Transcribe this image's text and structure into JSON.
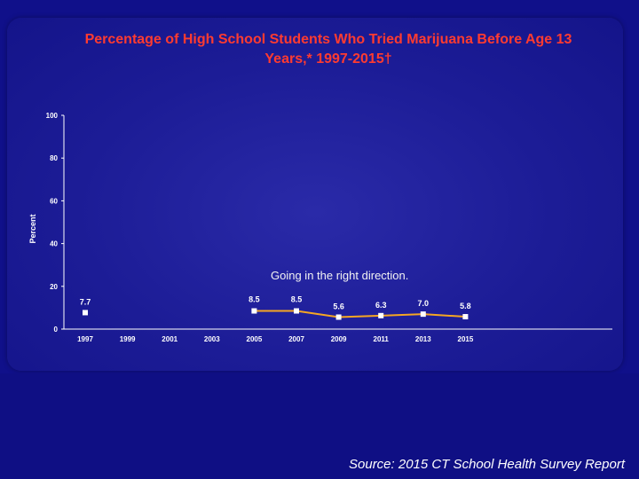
{
  "colors": {
    "background": "#10108a",
    "title": "#ff3b30",
    "line": "#f5a623",
    "marker": "#ffffff"
  },
  "annotation": "Going in the right direction.",
  "source": "Source: 2015 CT School Health Survey Report",
  "chart_data": {
    "type": "line",
    "title": "Percentage of High School Students Who Tried Marijuana Before Age 13 Years,* 1997-2015†",
    "title_lines": [
      "Percentage of High School Students Who Tried Marijuana Before Age 13",
      "Years,* 1997-2015†"
    ],
    "xlabel": "",
    "ylabel": "Percent",
    "ylim": [
      0,
      100
    ],
    "yticks": [
      "0",
      "20",
      "40",
      "60",
      "80",
      "100"
    ],
    "categories": [
      "1997",
      "1999",
      "2001",
      "2003",
      "2005",
      "2007",
      "2009",
      "2011",
      "2013",
      "2015"
    ],
    "values": [
      7.7,
      null,
      null,
      null,
      8.5,
      8.5,
      5.6,
      6.3,
      7.0,
      5.8
    ],
    "value_labels": [
      "7.7",
      "",
      "",
      "",
      "8.5",
      "8.5",
      "5.6",
      "6.3",
      "7.0",
      "5.8"
    ],
    "line_segments": [
      [
        4,
        9
      ]
    ],
    "grid": false,
    "legend": "none"
  }
}
